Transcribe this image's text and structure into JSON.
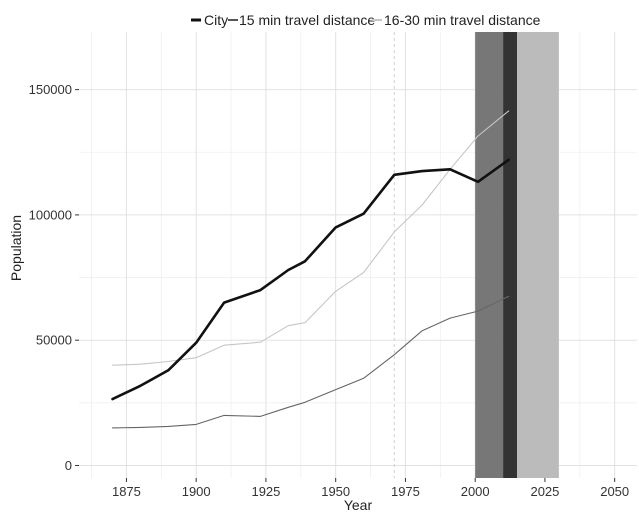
{
  "chart_data": {
    "type": "line",
    "xlabel": "Year",
    "ylabel": "Population",
    "xlim": [
      1858,
      2058
    ],
    "ylim": [
      -5000,
      173000
    ],
    "xticks": [
      1875,
      1900,
      1925,
      1950,
      1975,
      2000,
      2025,
      2050
    ],
    "yticks": [
      0,
      50000,
      100000,
      150000
    ],
    "yminor": [
      25000,
      75000,
      125000
    ],
    "grid": true,
    "legend_position": "top",
    "dashed_vline_x": 1971,
    "shaded_bands": [
      {
        "x0": 2000,
        "x1": 2010,
        "color": "#777777"
      },
      {
        "x0": 2010,
        "x1": 2015,
        "color": "#333333"
      },
      {
        "x0": 2015,
        "x1": 2030,
        "color": "#bbbbbb"
      }
    ],
    "series": [
      {
        "name": "City",
        "color": "#111111",
        "width": 2.6,
        "x": [
          1870,
          1880,
          1890,
          1900,
          1910,
          1923,
          1933,
          1939,
          1950,
          1960,
          1971,
          1981,
          1991,
          2001,
          2012
        ],
        "y": [
          26500,
          31800,
          38000,
          49000,
          65000,
          70000,
          78000,
          81500,
          95000,
          100500,
          116000,
          117500,
          118200,
          113200,
          122000
        ]
      },
      {
        "name": "15 min travel distance",
        "color": "#666666",
        "width": 1.1,
        "x": [
          1870,
          1880,
          1890,
          1900,
          1910,
          1923,
          1933,
          1939,
          1950,
          1960,
          1971,
          1981,
          1991,
          2001,
          2012
        ],
        "y": [
          15000,
          15200,
          15600,
          16400,
          20000,
          19600,
          23200,
          25200,
          30300,
          34800,
          44200,
          53800,
          58800,
          61600,
          67500
        ]
      },
      {
        "name": "16-30 min travel distance",
        "color": "#c6c6c6",
        "width": 1.1,
        "x": [
          1870,
          1880,
          1890,
          1900,
          1910,
          1923,
          1933,
          1939,
          1950,
          1960,
          1971,
          1981,
          1991,
          2001,
          2012
        ],
        "y": [
          40000,
          40400,
          41500,
          43000,
          48000,
          49200,
          55800,
          57000,
          69500,
          77000,
          93200,
          104000,
          118200,
          131500,
          141500
        ]
      }
    ]
  }
}
